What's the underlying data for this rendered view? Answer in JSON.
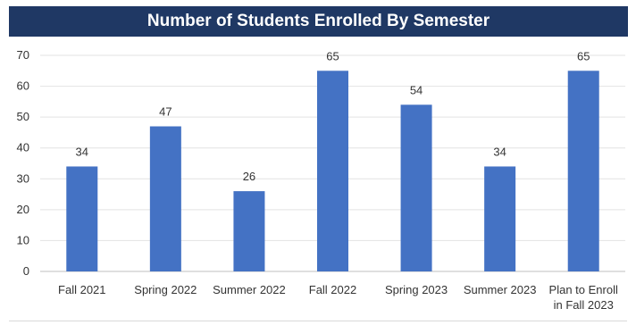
{
  "chart_data": {
    "type": "bar",
    "title": "Number of Students Enrolled By Semester",
    "categories": [
      [
        "Fall 2021"
      ],
      [
        "Spring 2022"
      ],
      [
        "Summer 2022"
      ],
      [
        "Fall 2022"
      ],
      [
        "Spring 2023"
      ],
      [
        "Summer 2023"
      ],
      [
        "Plan to Enroll",
        "in Fall 2023"
      ]
    ],
    "values": [
      34,
      47,
      26,
      65,
      54,
      34,
      65
    ],
    "ylim": [
      0,
      70
    ],
    "yticks": [
      0,
      10,
      20,
      30,
      40,
      50,
      60,
      70
    ],
    "grid": true,
    "bar_color": "#4472c4",
    "title_bg_color": "#1f3864"
  }
}
